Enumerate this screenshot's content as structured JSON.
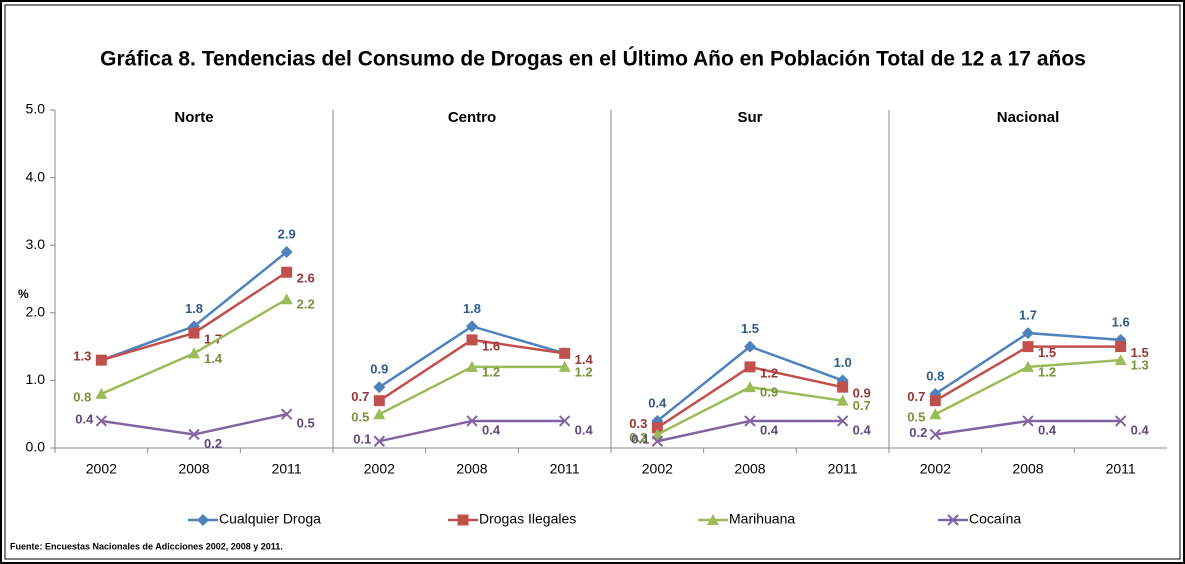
{
  "chart_data": {
    "type": "line",
    "title": "Gráfica 8. Tendencias del Consumo de Drogas en el Último Año en Población Total de 12 a 17 años",
    "ylabel": "%",
    "ylim": [
      0,
      5
    ],
    "yticks": [
      {
        "value": 0,
        "label": "0.0"
      },
      {
        "value": 1,
        "label": "1.0"
      },
      {
        "value": 2,
        "label": "2.0"
      },
      {
        "value": 3,
        "label": "3.0"
      },
      {
        "value": 4,
        "label": "4.0"
      },
      {
        "value": 5,
        "label": "5.0"
      }
    ],
    "categories": [
      "2002",
      "2008",
      "2011"
    ],
    "series": [
      {
        "name": "Cualquier Droga",
        "color": "#4f81bd",
        "label_color": "#2e5c8a",
        "marker": "diamond"
      },
      {
        "name": "Drogas Ilegales",
        "color": "#c0504d",
        "label_color": "#943634",
        "marker": "square"
      },
      {
        "name": "Marihuana",
        "color": "#9bbb59",
        "label_color": "#76923c",
        "marker": "triangle"
      },
      {
        "name": "Cocaína",
        "color": "#8064a2",
        "label_color": "#5f497a",
        "marker": "x"
      }
    ],
    "panels": [
      {
        "title": "Norte",
        "values": [
          [
            1.3,
            1.8,
            2.9
          ],
          [
            1.3,
            1.7,
            2.6
          ],
          [
            0.8,
            1.4,
            2.2
          ],
          [
            0.4,
            0.2,
            0.5
          ]
        ],
        "value_labels": [
          [
            null,
            "1.8",
            "2.9"
          ],
          [
            "1.3",
            "1.7",
            "2.6"
          ],
          [
            "0.8",
            "1.4",
            "2.2"
          ],
          [
            "0.4",
            "0.2",
            "0.5"
          ]
        ]
      },
      {
        "title": "Centro",
        "values": [
          [
            0.9,
            1.8,
            1.4
          ],
          [
            0.7,
            1.6,
            1.4
          ],
          [
            0.5,
            1.2,
            1.2
          ],
          [
            0.1,
            0.4,
            0.4
          ]
        ],
        "value_labels": [
          [
            "0.9",
            "1.8",
            null
          ],
          [
            "0.7",
            "1.6",
            "1.4"
          ],
          [
            "0.5",
            "1.2",
            "1.2"
          ],
          [
            "0.1",
            "0.4",
            "0.4"
          ]
        ]
      },
      {
        "title": "Sur",
        "values": [
          [
            0.4,
            1.5,
            1.0
          ],
          [
            0.3,
            1.2,
            0.9
          ],
          [
            0.2,
            0.9,
            0.7
          ],
          [
            0.1,
            0.4,
            0.4
          ]
        ],
        "value_labels": [
          [
            "0.4",
            "1.5",
            "1.0"
          ],
          [
            "0.3",
            "1.2",
            "0.9"
          ],
          [
            "0.2",
            "0.9",
            "0.7"
          ],
          [
            "0.1",
            "0.4",
            "0.4"
          ]
        ]
      },
      {
        "title": "Nacional",
        "values": [
          [
            0.8,
            1.7,
            1.6
          ],
          [
            0.7,
            1.5,
            1.5
          ],
          [
            0.5,
            1.2,
            1.3
          ],
          [
            0.2,
            0.4,
            0.4
          ]
        ],
        "value_labels": [
          [
            "0.8",
            "1.7",
            "1.6"
          ],
          [
            "0.7",
            "1.5",
            "1.5"
          ],
          [
            "0.5",
            "1.2",
            "1.3"
          ],
          [
            "0.2",
            "0.4",
            "0.4"
          ]
        ]
      }
    ],
    "source": "Fuente: Encuestas Nacionales de Adicciones 2002, 2008 y 2011."
  }
}
